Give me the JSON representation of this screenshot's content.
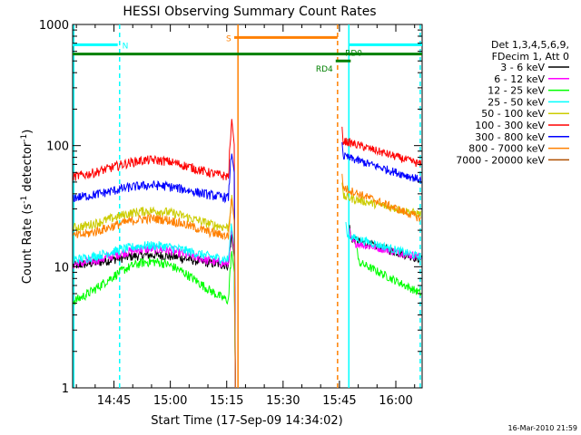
{
  "chart_data": {
    "type": "line",
    "title": "HESSI Observing Summary Count Rates",
    "xlabel": "Start Time (17-Sep-09 14:34:02)",
    "ylabel_main": "Count Rate (s",
    "ylabel_sup1": "-1",
    "ylabel_mid": " detector",
    "ylabel_sup2": "-1",
    "ylabel_end": ")",
    "yscale": "log",
    "ylim": [
      1,
      1000
    ],
    "xlim_minutes": [
      34.0,
      127.0
    ],
    "x_tick_labels": [
      "14:45",
      "15:00",
      "15:15",
      "15:30",
      "15:45",
      "16:00"
    ],
    "x_tick_minutes": [
      45,
      60,
      75,
      90,
      105,
      120
    ],
    "y_tick_labels": [
      "1",
      "10",
      "100",
      "1000"
    ],
    "y_tick_values": [
      1,
      10,
      100,
      1000
    ],
    "legend_header": [
      "Det 1,3,4,5,6,9,",
      "FDecim 1, Att 0"
    ],
    "series": [
      {
        "name": "3 - 6 keV",
        "color": "#000000",
        "pre_base": 10,
        "pre_peak": 12.5,
        "spike": 20,
        "post_start": 17,
        "post_end": 11.5,
        "post_from": 108
      },
      {
        "name": "6 - 12 keV",
        "color": "#ff00ff",
        "pre_base": 10,
        "pre_peak": 14,
        "spike": 22,
        "post_start": 16,
        "post_end": 12,
        "post_from": 108
      },
      {
        "name": "12 - 25 keV",
        "color": "#00ff00",
        "pre_base": 4.5,
        "pre_peak": 11,
        "spike": 15,
        "post_start": 11,
        "post_end": 6,
        "post_from": 110
      },
      {
        "name": "25 - 50 keV",
        "color": "#00ffff",
        "pre_base": 11,
        "pre_peak": 15,
        "spike": 25,
        "post_start": 18,
        "post_end": 12,
        "post_from": 107
      },
      {
        "name": "50 - 100 keV",
        "color": "#cccc00",
        "pre_base": 20,
        "pre_peak": 29,
        "spike": 40,
        "post_start": 38,
        "post_end": 27,
        "post_from": 106
      },
      {
        "name": "100 - 300 keV",
        "color": "#ff0000",
        "pre_base": 53,
        "pre_peak": 76,
        "spike": 170,
        "post_start": 110,
        "post_end": 70,
        "post_from": 106
      },
      {
        "name": "300 - 800 keV",
        "color": "#0000ff",
        "pre_base": 36,
        "pre_peak": 47,
        "spike": 100,
        "post_start": 82,
        "post_end": 52,
        "post_from": 106
      },
      {
        "name": "800 - 7000 keV",
        "color": "#ff8000",
        "pre_base": 17,
        "pre_peak": 25,
        "spike": 40,
        "post_start": 45,
        "post_end": 25,
        "post_from": 106
      },
      {
        "name": "7000 - 20000 keV",
        "color": "#b05000",
        "pre_base": 0,
        "pre_peak": 0,
        "spike": 0,
        "post_start": 0,
        "post_end": 0,
        "post_from": 0
      }
    ],
    "flag_bars": [
      {
        "label": "N",
        "color": "#00ffff",
        "segments": [
          [
            34,
            46
          ],
          [
            107.5,
            127
          ]
        ],
        "level": 680
      },
      {
        "label": "S",
        "color": "#ff8000",
        "segments": [
          [
            77,
            104.5
          ]
        ],
        "level": 780
      },
      {
        "label": "RD0",
        "color": "#008000",
        "segments": [
          [
            34,
            127
          ]
        ],
        "level": 570
      },
      {
        "label": "RD4",
        "color": "#008000",
        "segments": [
          [
            104,
            108
          ]
        ],
        "level": 500
      }
    ],
    "vertical_markers": [
      {
        "minute": 34.3,
        "color": "#00ffff",
        "style": "solid"
      },
      {
        "minute": 46.5,
        "color": "#00ffff",
        "style": "dashed"
      },
      {
        "minute": 78,
        "color": "#ff8000",
        "style": "solid"
      },
      {
        "minute": 104.5,
        "color": "#ff8000",
        "style": "dashed"
      },
      {
        "minute": 107.5,
        "color": "#00ffff",
        "style": "solid"
      },
      {
        "minute": 126.5,
        "color": "#00ffff",
        "style": "dashed"
      }
    ],
    "grid": false,
    "legend_position": "right"
  },
  "footer_timestamp": "16-Mar-2010 21:59"
}
